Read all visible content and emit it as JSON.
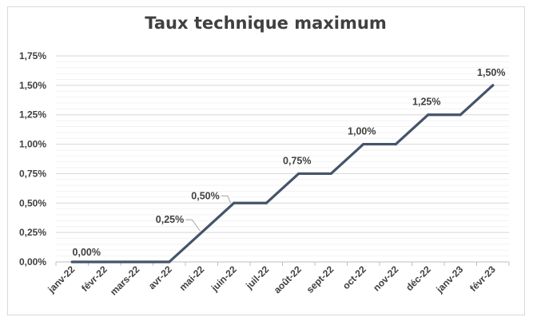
{
  "chart_data": {
    "type": "line",
    "title": "Taux technique maximum",
    "categories": [
      "janv-22",
      "févr-22",
      "mars-22",
      "avr-22",
      "mai-22",
      "juin-22",
      "juil-22",
      "août-22",
      "sept-22",
      "oct-22",
      "nov-22",
      "déc-22",
      "janv-23",
      "févr-23"
    ],
    "series": [
      {
        "values": [
          0,
          0,
          0,
          0,
          0.25,
          0.5,
          0.5,
          0.75,
          0.75,
          1.0,
          1.0,
          1.25,
          1.25,
          1.5
        ]
      }
    ],
    "data_labels": [
      {
        "index": 0,
        "text": "0,00%"
      },
      {
        "index": 4,
        "text": "0,25%"
      },
      {
        "index": 5,
        "text": "0,50%"
      },
      {
        "index": 7,
        "text": "0,75%"
      },
      {
        "index": 9,
        "text": "1,00%"
      },
      {
        "index": 11,
        "text": "1,25%"
      },
      {
        "index": 13,
        "text": "1,50%"
      }
    ],
    "y_ticks": [
      "0,00%",
      "0,25%",
      "0,50%",
      "0,75%",
      "1,00%",
      "1,25%",
      "1,50%",
      "1,75%"
    ],
    "ylim": [
      0,
      1.75
    ],
    "xlabel": "",
    "ylabel": "",
    "grid": true,
    "legend": "none",
    "colors": {
      "line": "#44546a",
      "grid_major": "#d9d9d9",
      "grid_minor": "#f2f2f2",
      "text": "#404040",
      "axis": "#bfbfbf"
    }
  }
}
